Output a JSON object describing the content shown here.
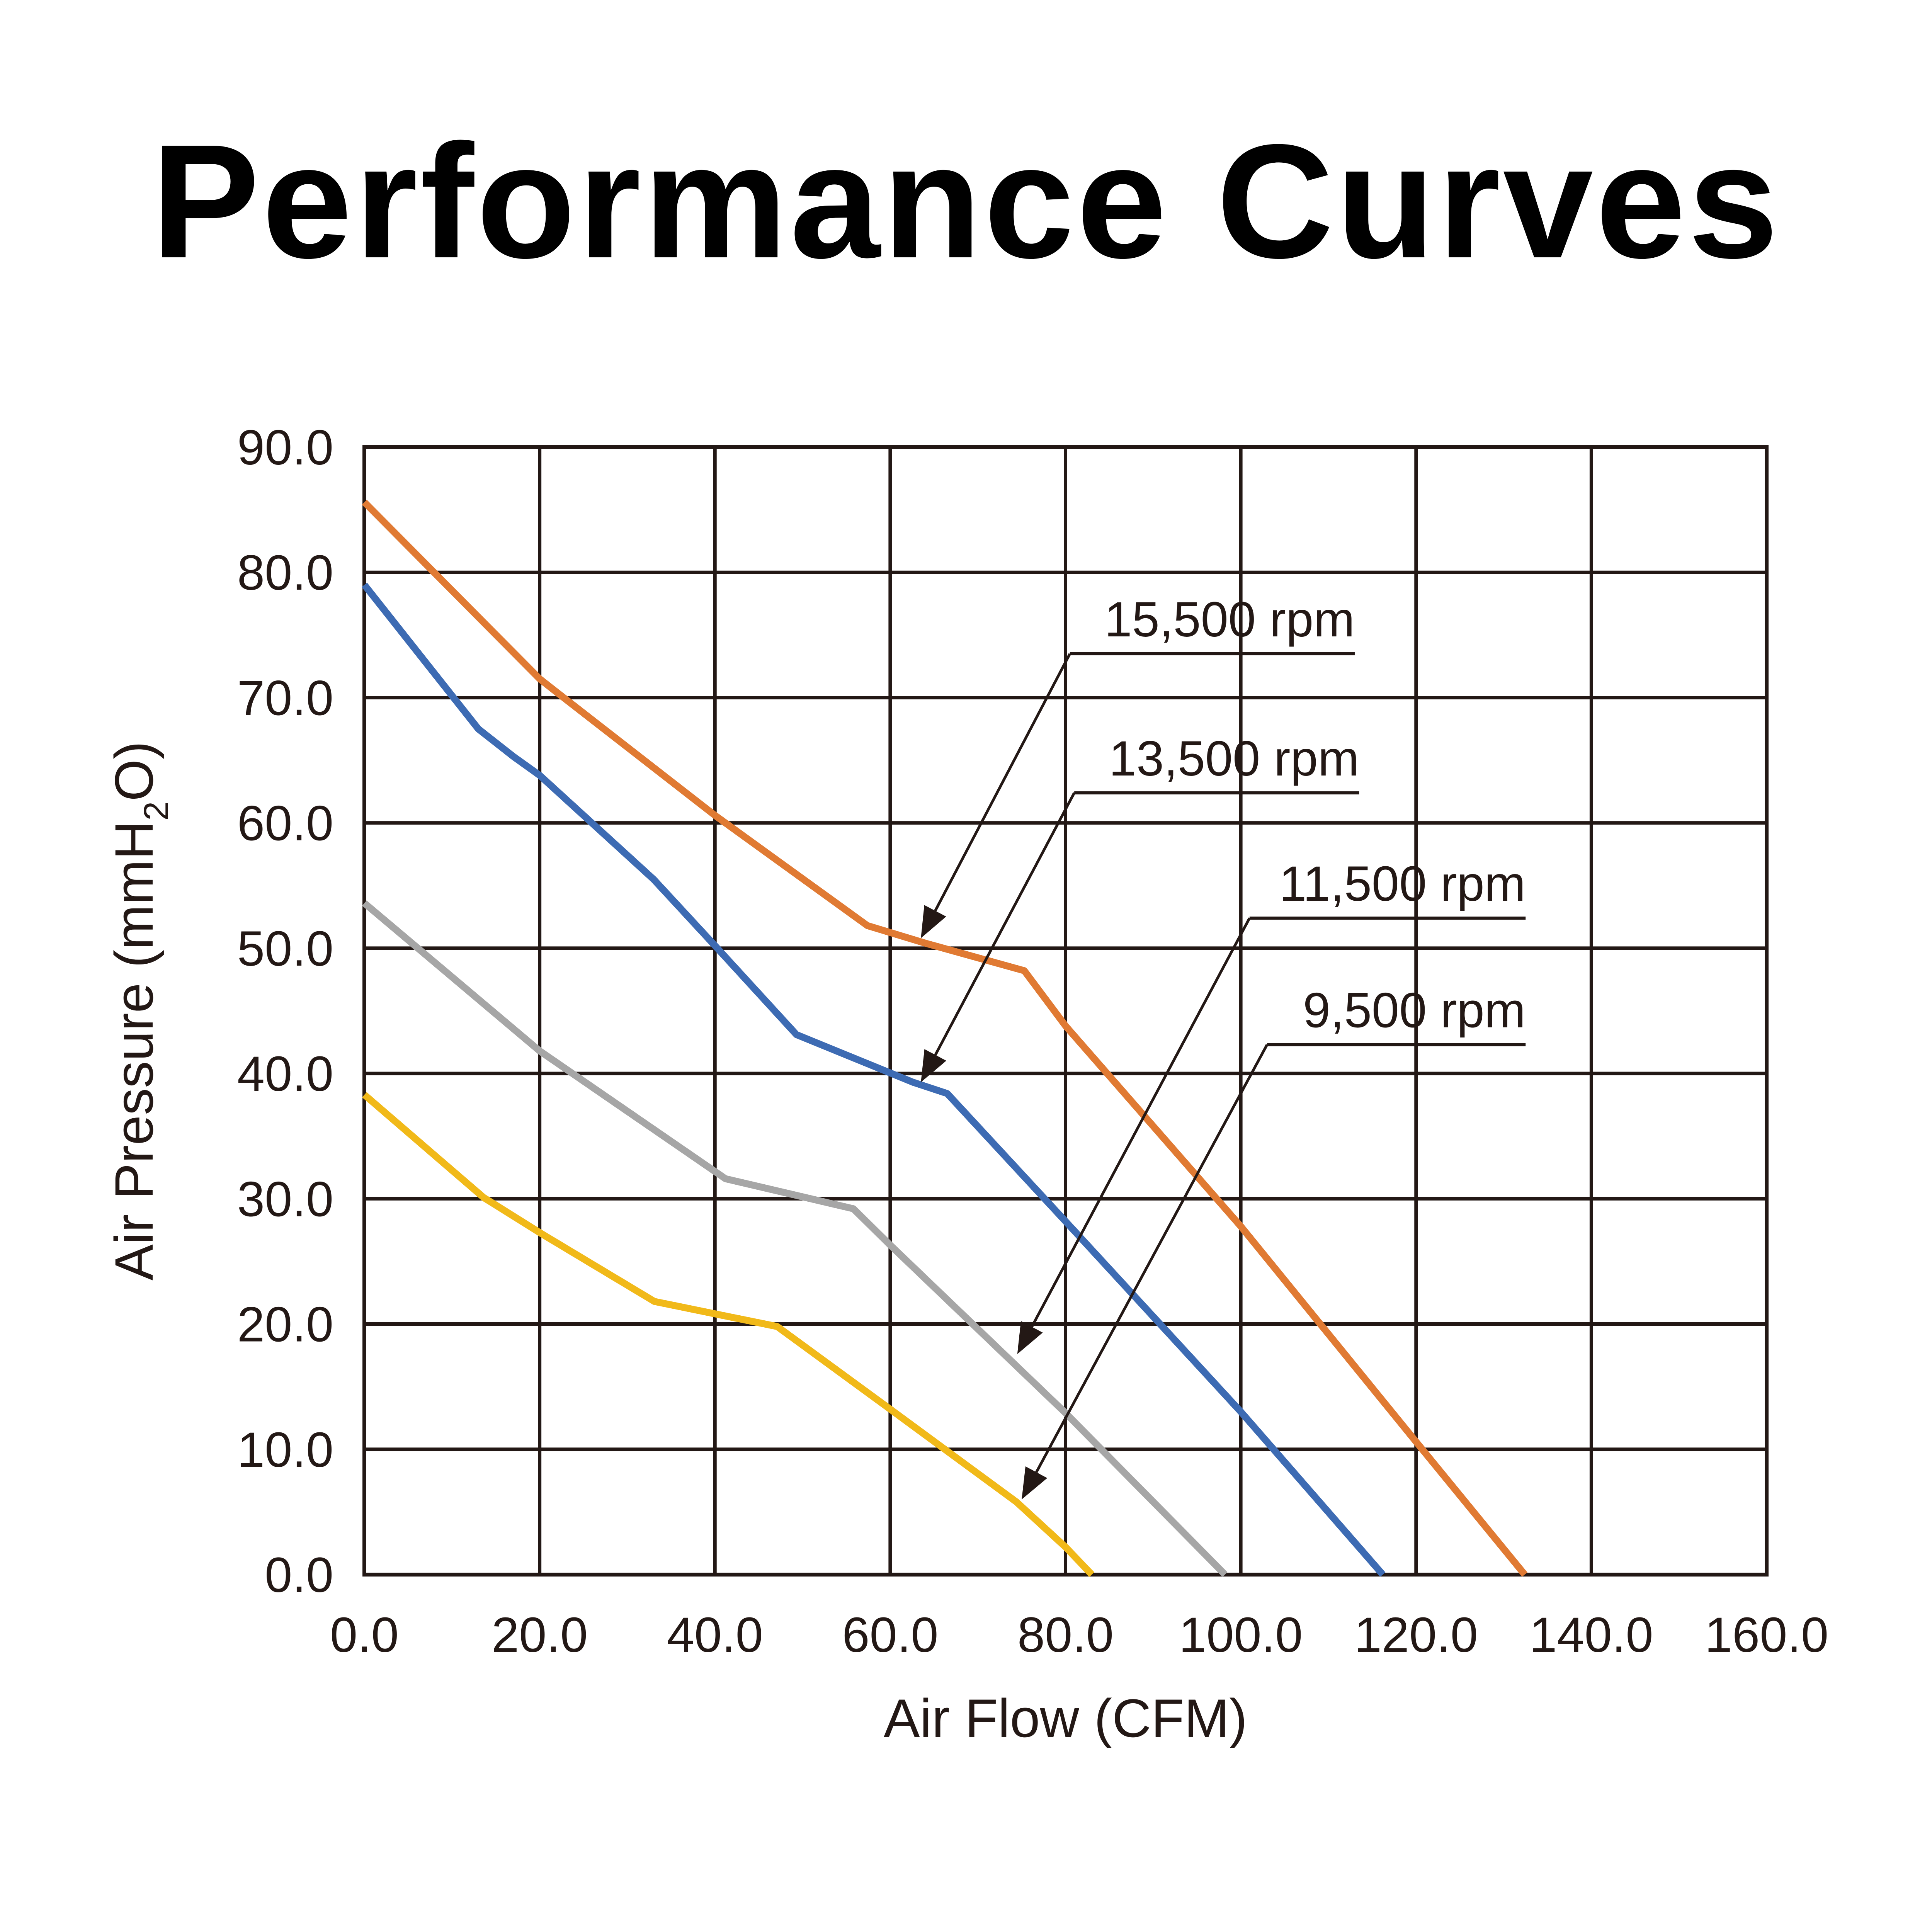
{
  "chart_data": {
    "type": "line",
    "title": "Performance Curves",
    "xlabel": "Air Flow (CFM)",
    "ylabel": "Air Pressure (mmH2O)",
    "ylabel_parts": {
      "main": "Air Pressure (mmH",
      "sub": "2",
      "tail": "O)"
    },
    "xlim": [
      0,
      160
    ],
    "ylim": [
      0,
      90
    ],
    "grid": true,
    "x_ticks": [
      "0.0",
      "20.0",
      "40.0",
      "60.0",
      "80.0",
      "100.0",
      "120.0",
      "140.0",
      "160.0"
    ],
    "y_ticks": [
      "0.0",
      "10.0",
      "20.0",
      "30.0",
      "40.0",
      "50.0",
      "60.0",
      "70.0",
      "80.0",
      "90.0"
    ],
    "series": [
      {
        "name": "15,500 rpm",
        "color": "#E07A33",
        "points": [
          [
            0,
            85.6
          ],
          [
            20,
            71.5
          ],
          [
            22,
            70.4
          ],
          [
            40,
            60.6
          ],
          [
            57.4,
            51.8
          ],
          [
            64,
            50.4
          ],
          [
            75.3,
            48.2
          ],
          [
            80,
            43.8
          ],
          [
            100,
            27.8
          ],
          [
            120,
            10.6
          ],
          [
            132.4,
            0
          ]
        ]
      },
      {
        "name": "13,500 rpm",
        "color": "#3D6BB3",
        "points": [
          [
            0,
            79.0
          ],
          [
            13,
            67.5
          ],
          [
            17,
            65.3
          ],
          [
            20,
            63.8
          ],
          [
            33,
            55.5
          ],
          [
            40,
            50.2
          ],
          [
            49.3,
            43.1
          ],
          [
            62.6,
            39.3
          ],
          [
            66.5,
            38.4
          ],
          [
            80,
            28.2
          ],
          [
            100,
            13.0
          ],
          [
            116.2,
            0
          ]
        ]
      },
      {
        "name": "11,500 rpm",
        "color": "#A6A6A6",
        "points": [
          [
            0,
            53.6
          ],
          [
            20,
            41.8
          ],
          [
            41.2,
            31.6
          ],
          [
            55.8,
            29.2
          ],
          [
            60,
            26.3
          ],
          [
            80,
            12.9
          ],
          [
            98.2,
            0
          ]
        ]
      },
      {
        "name": "9,500 rpm",
        "color": "#F1B919",
        "points": [
          [
            0,
            38.3
          ],
          [
            13.6,
            30.1
          ],
          [
            20,
            27.3
          ],
          [
            33.1,
            21.8
          ],
          [
            47.1,
            19.8
          ],
          [
            60,
            13.2
          ],
          [
            74.4,
            5.8
          ],
          [
            80,
            2.2
          ],
          [
            83.0,
            0
          ]
        ]
      }
    ],
    "annotations": [
      {
        "text": "15,500 rpm",
        "label_x": 80.5,
        "label_y": 73.5,
        "line_end_x": 113,
        "arrow_to": [
          63.5,
          50.8
        ]
      },
      {
        "text": "13,500 rpm",
        "label_x": 81,
        "label_y": 62.4,
        "line_end_x": 113.5,
        "arrow_to": [
          63.5,
          39.3
        ]
      },
      {
        "text": "11,500 rpm",
        "label_x": 101,
        "label_y": 52.4,
        "line_end_x": 132.5,
        "arrow_to": [
          74.5,
          17.6
        ]
      },
      {
        "text": "9,500 rpm",
        "label_x": 103,
        "label_y": 42.3,
        "line_end_x": 132.5,
        "arrow_to": [
          75.0,
          6.0
        ]
      }
    ],
    "grid_color": "#231815"
  }
}
